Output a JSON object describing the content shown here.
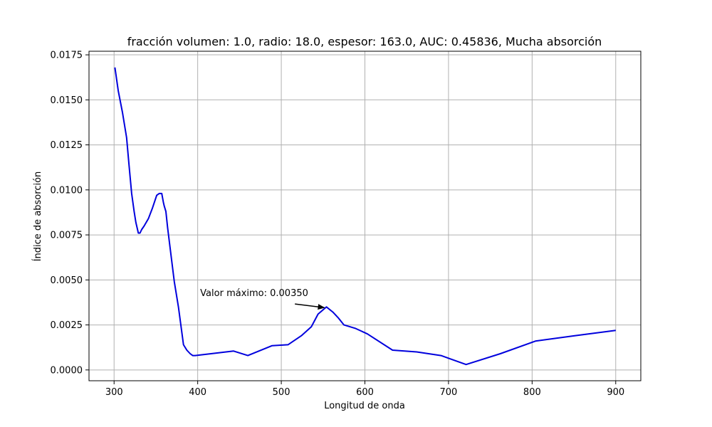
{
  "chart_data": {
    "type": "line",
    "title": "fracción volumen: 1.0, radio: 18.0, espesor: 163.0, AUC: 0.45836, Mucha absorción",
    "xlabel": "Longitud de onda",
    "ylabel": "Índice de absorción",
    "xlim": [
      270,
      930
    ],
    "ylim": [
      -0.0006,
      0.0177
    ],
    "xticks": [
      300,
      400,
      500,
      600,
      700,
      800,
      900
    ],
    "xtick_labels": [
      "300",
      "400",
      "500",
      "600",
      "700",
      "800",
      "900"
    ],
    "yticks": [
      0.0,
      0.0025,
      0.005,
      0.0075,
      0.01,
      0.0125,
      0.015,
      0.0175
    ],
    "ytick_labels": [
      "0.0000",
      "0.0025",
      "0.0050",
      "0.0075",
      "0.0100",
      "0.0125",
      "0.0150",
      "0.0175"
    ],
    "grid": true,
    "series": [
      {
        "color": "#0000dd",
        "x": [
          301,
          305,
          310,
          315,
          318,
          321,
          324,
          326,
          329,
          331,
          333,
          336,
          341,
          346,
          351,
          354,
          357,
          359,
          360,
          362,
          364,
          368,
          372,
          377,
          383,
          387,
          391,
          394,
          397,
          416,
          443,
          460,
          489,
          508,
          524,
          536,
          544,
          554,
          562,
          568,
          575,
          589,
          603,
          633,
          662,
          691,
          721,
          762,
          804,
          851,
          900
        ],
        "y": [
          0.0168,
          0.0155,
          0.0143,
          0.0129,
          0.0113,
          0.0098,
          0.0088,
          0.0082,
          0.0076,
          0.0076,
          0.0078,
          0.008,
          0.0084,
          0.009,
          0.0097,
          0.0098,
          0.0098,
          0.0093,
          0.0091,
          0.0088,
          0.0079,
          0.0064,
          0.0049,
          0.0035,
          0.0014,
          0.0011,
          0.0009,
          0.0008,
          0.0008,
          0.0009,
          0.00105,
          0.0008,
          0.00135,
          0.0014,
          0.0019,
          0.0024,
          0.0031,
          0.0035,
          0.0032,
          0.0029,
          0.0025,
          0.0023,
          0.002,
          0.0011,
          0.001,
          0.0008,
          0.0003,
          0.0009,
          0.0016,
          0.0019,
          0.0022
        ]
      }
    ],
    "annotation": {
      "text": "Valor máximo: 0.00350",
      "point_x": 554,
      "point_y": 0.0035,
      "text_x": 403,
      "text_y": 0.0041
    }
  }
}
